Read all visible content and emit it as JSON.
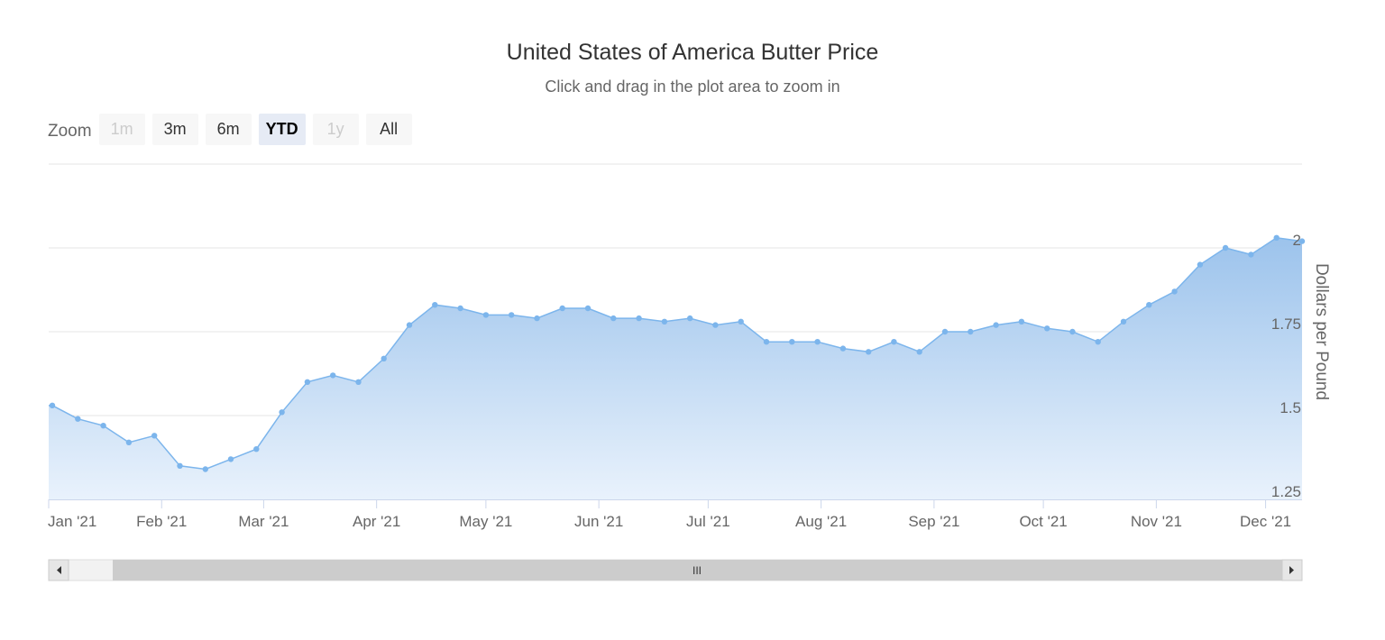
{
  "title": "United States of America Butter Price",
  "subtitle": "Click and drag in the plot area to zoom in",
  "zoom": {
    "label": "Zoom",
    "buttons": [
      {
        "label": "1m",
        "state": "disabled"
      },
      {
        "label": "3m",
        "state": "normal"
      },
      {
        "label": "6m",
        "state": "normal"
      },
      {
        "label": "YTD",
        "state": "active"
      },
      {
        "label": "1y",
        "state": "disabled"
      },
      {
        "label": "All",
        "state": "normal"
      }
    ]
  },
  "scrollbar": {
    "grip_label": "III"
  },
  "colors": {
    "line": "#7cb5ec",
    "area_top": "#9cc3ec",
    "area_bottom": "#e9f2fc",
    "grid": "#e6e6e6",
    "axis_line": "#ccd6eb",
    "scrollbar_track": "#f2f2f2",
    "scrollbar_thumb": "#cccccc",
    "scroll_button": "#e6e6e6"
  },
  "chart_data": {
    "type": "area",
    "title": "United States of America Butter Price",
    "subtitle": "Click and drag in the plot area to zoom in",
    "ylabel": "Dollars per Pound",
    "y_axis_side": "right",
    "ylim": [
      1.25,
      2.0
    ],
    "y_ticks": [
      1.25,
      1.5,
      1.75,
      2
    ],
    "y_tick_labels": [
      "1.25",
      "1.5",
      "1.75",
      "2"
    ],
    "x_range": [
      "2021-01-01",
      "2021-12-11"
    ],
    "x_ticks": [
      "2021-01-01",
      "2021-02-01",
      "2021-03-01",
      "2021-04-01",
      "2021-05-01",
      "2021-06-01",
      "2021-07-01",
      "2021-08-01",
      "2021-09-01",
      "2021-10-01",
      "2021-11-01",
      "2021-12-01"
    ],
    "x_tick_labels": [
      "Jan '21",
      "Feb '21",
      "Mar '21",
      "Apr '21",
      "May '21",
      "Jun '21",
      "Jul '21",
      "Aug '21",
      "Sep '21",
      "Oct '21",
      "Nov '21",
      "Dec '21"
    ],
    "grid": true,
    "legend": false,
    "series": [
      {
        "x": [
          "2021-01-02",
          "2021-01-09",
          "2021-01-16",
          "2021-01-23",
          "2021-01-30",
          "2021-02-06",
          "2021-02-13",
          "2021-02-20",
          "2021-02-27",
          "2021-03-06",
          "2021-03-13",
          "2021-03-20",
          "2021-03-27",
          "2021-04-03",
          "2021-04-10",
          "2021-04-17",
          "2021-04-24",
          "2021-05-01",
          "2021-05-08",
          "2021-05-15",
          "2021-05-22",
          "2021-05-29",
          "2021-06-05",
          "2021-06-12",
          "2021-06-19",
          "2021-06-26",
          "2021-07-03",
          "2021-07-10",
          "2021-07-17",
          "2021-07-24",
          "2021-07-31",
          "2021-08-07",
          "2021-08-14",
          "2021-08-21",
          "2021-08-28",
          "2021-09-04",
          "2021-09-11",
          "2021-09-18",
          "2021-09-25",
          "2021-10-02",
          "2021-10-09",
          "2021-10-16",
          "2021-10-23",
          "2021-10-30",
          "2021-11-06",
          "2021-11-13",
          "2021-11-20",
          "2021-11-27",
          "2021-12-04",
          "2021-12-11"
        ],
        "y": [
          1.53,
          1.49,
          1.47,
          1.42,
          1.44,
          1.35,
          1.34,
          1.37,
          1.4,
          1.51,
          1.6,
          1.62,
          1.6,
          1.67,
          1.77,
          1.83,
          1.82,
          1.8,
          1.8,
          1.79,
          1.82,
          1.82,
          1.79,
          1.79,
          1.78,
          1.79,
          1.77,
          1.78,
          1.72,
          1.72,
          1.72,
          1.7,
          1.69,
          1.72,
          1.69,
          1.75,
          1.75,
          1.77,
          1.78,
          1.76,
          1.75,
          1.72,
          1.78,
          1.83,
          1.87,
          1.95,
          2.0,
          1.98,
          2.03,
          2.02
        ]
      }
    ]
  }
}
